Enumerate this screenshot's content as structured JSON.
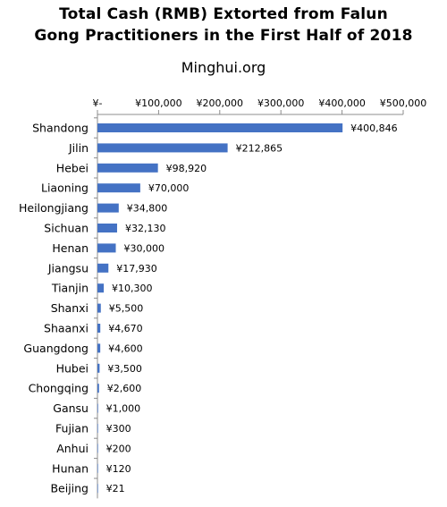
{
  "chart_data": {
    "type": "bar",
    "orientation": "horizontal",
    "title_lines": [
      "Total Cash (RMB) Extorted from Falun",
      "Gong Practitioners in the First Half of 2018"
    ],
    "subtitle": "Minghui.org",
    "xlabel": "",
    "ylabel": "",
    "xlim": [
      0,
      500000
    ],
    "x_ticks": [
      0,
      100000,
      200000,
      300000,
      400000,
      500000
    ],
    "x_tick_labels": [
      "¥-",
      "¥100,000",
      "¥200,000",
      "¥300,000",
      "¥400,000",
      "¥500,000"
    ],
    "x_axis_position": "top",
    "grid": false,
    "legend": "none",
    "bar_color": "#4472C4",
    "categories": [
      "Shandong",
      "Jilin",
      "Hebei",
      "Liaoning",
      "Heilongjiang",
      "Sichuan",
      "Henan",
      "Jiangsu",
      "Tianjin",
      "Shanxi",
      "Shaanxi",
      "Guangdong",
      "Hubei",
      "Chongqing",
      "Gansu",
      "Fujian",
      "Anhui",
      "Hunan",
      "Beijing"
    ],
    "values": [
      400846,
      212865,
      98920,
      70000,
      34800,
      32130,
      30000,
      17930,
      10300,
      5500,
      4670,
      4600,
      3500,
      2600,
      1000,
      300,
      200,
      120,
      21
    ],
    "data_labels": [
      "¥400,846",
      "¥212,865",
      "¥98,920",
      "¥70,000",
      "¥34,800",
      "¥32,130",
      "¥30,000",
      "¥17,930",
      "¥10,300",
      "¥5,500",
      "¥4,670",
      "¥4,600",
      "¥3,500",
      "¥2,600",
      "¥1,000",
      "¥300",
      "¥200",
      "¥120",
      "¥21"
    ]
  }
}
